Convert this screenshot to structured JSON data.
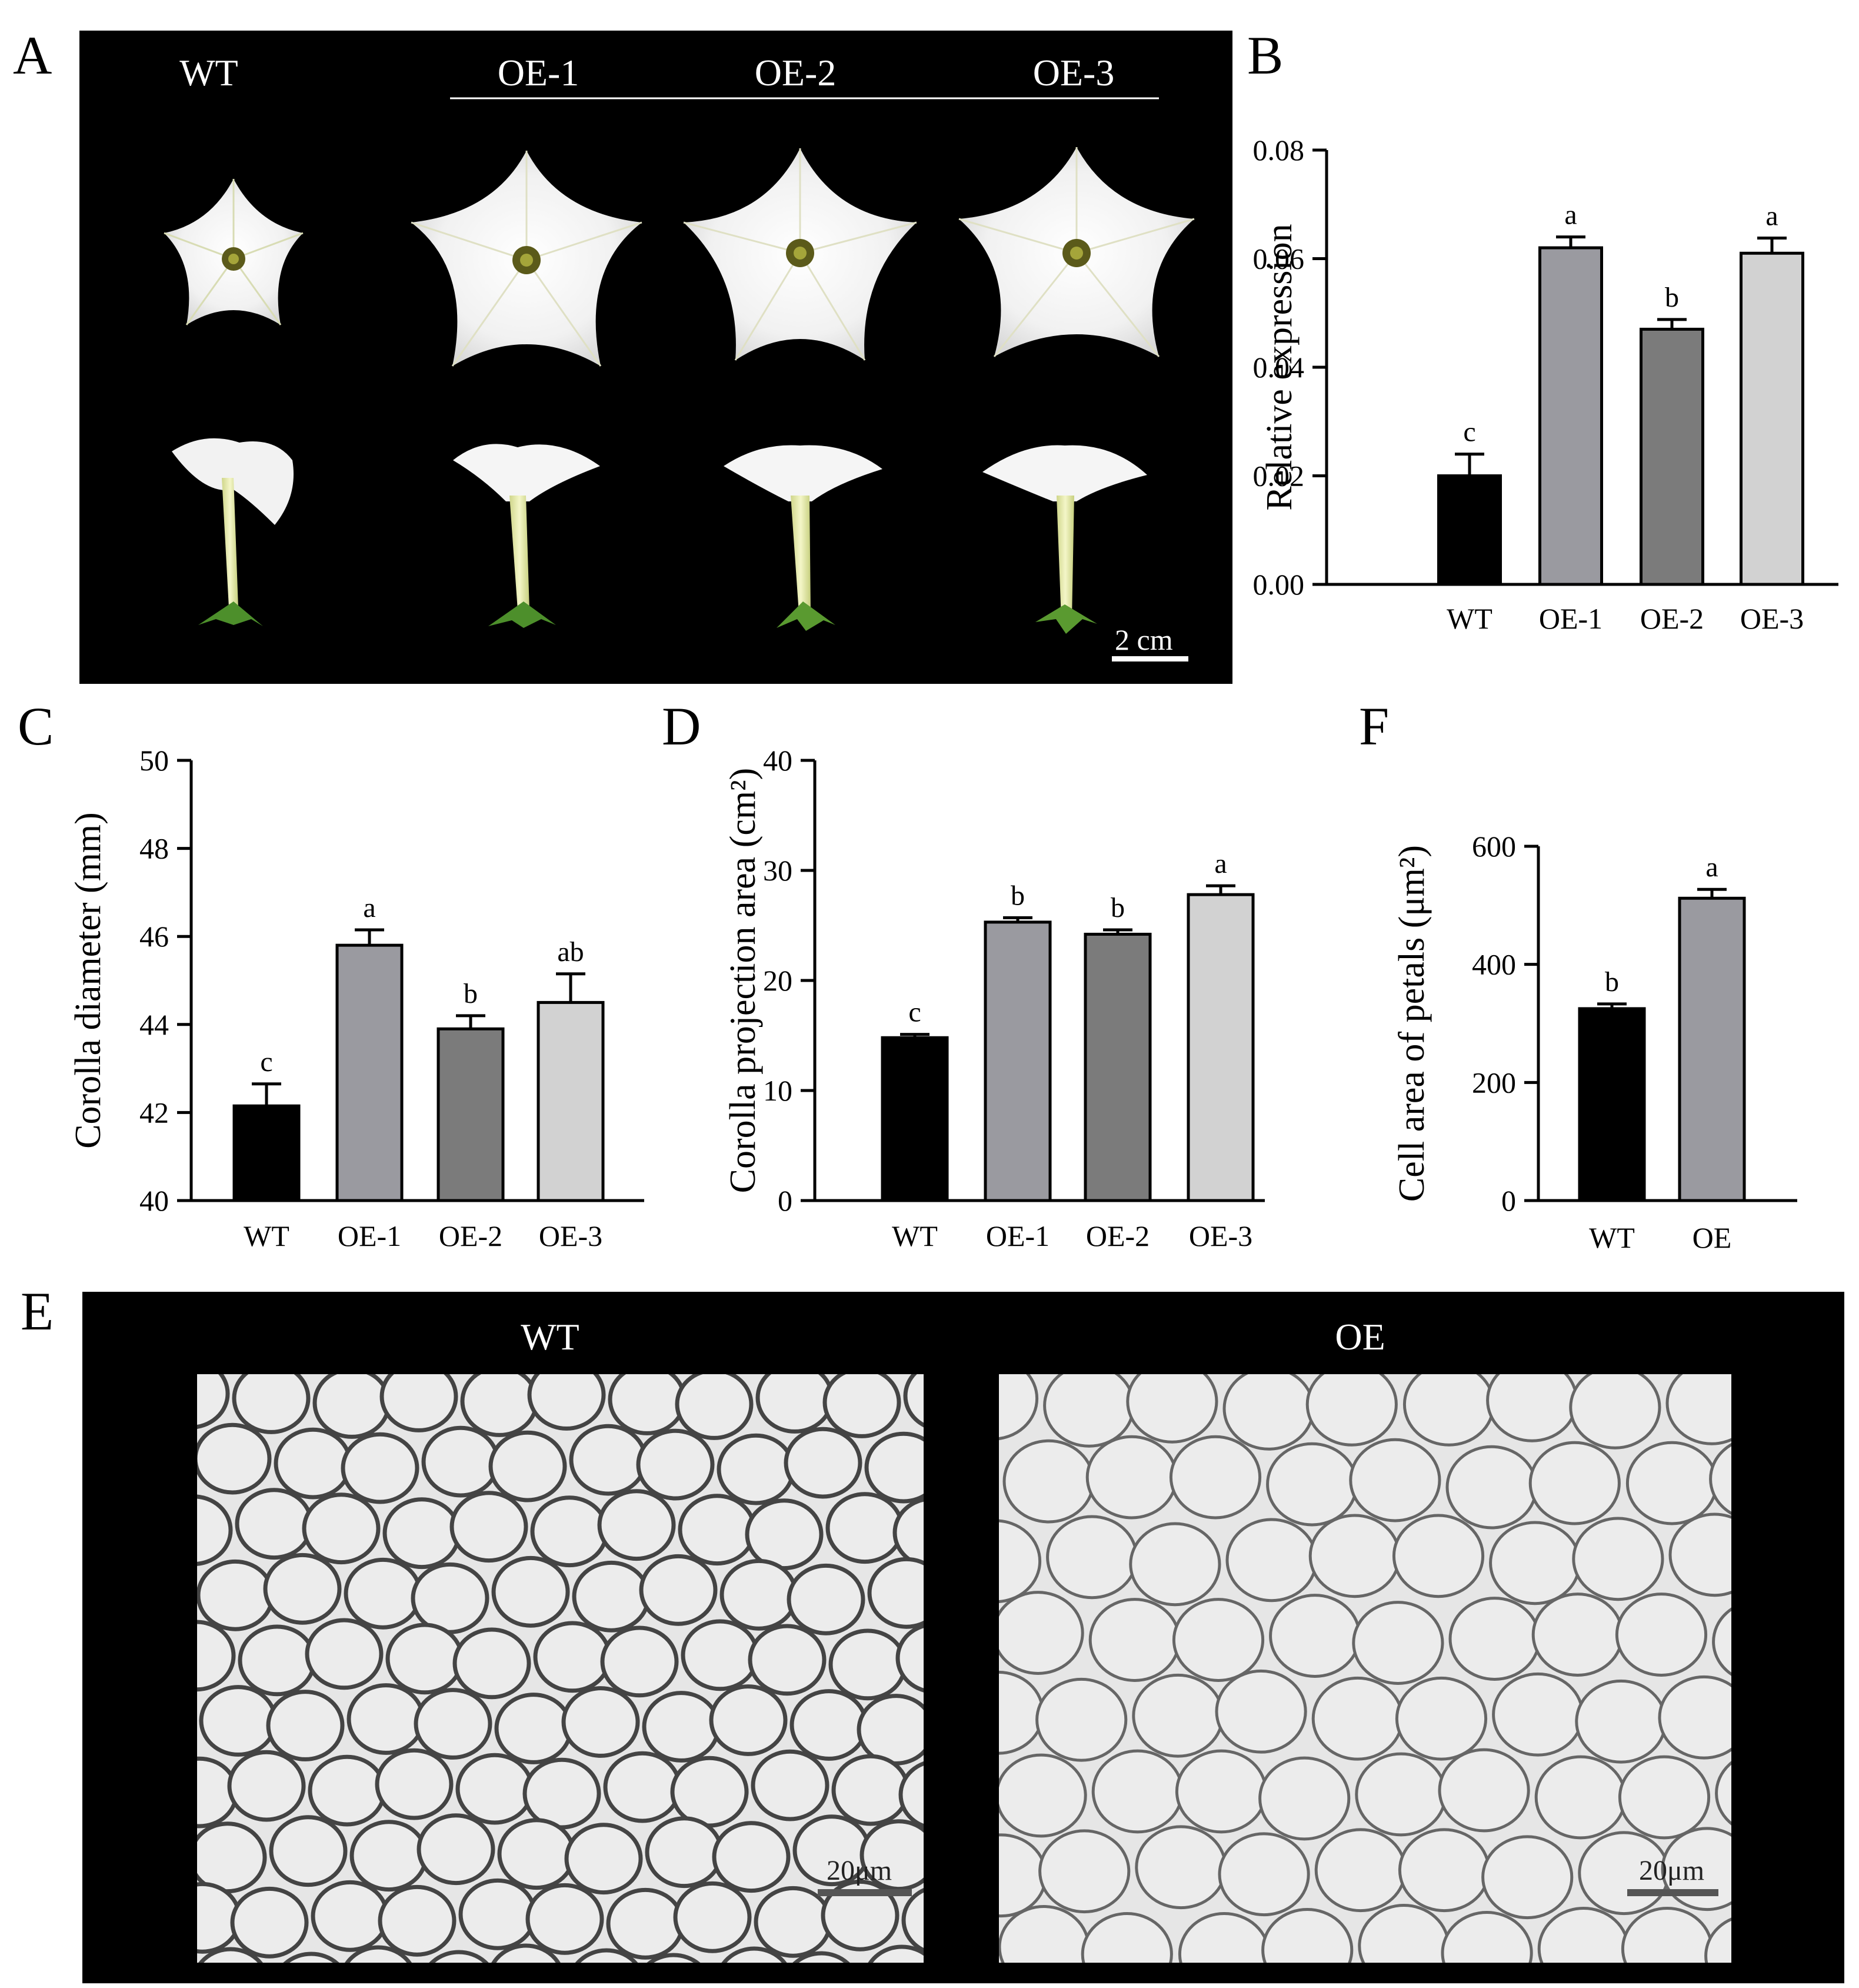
{
  "panel_letters": {
    "a": "A",
    "b": "B",
    "c": "C",
    "d": "D",
    "e": "E",
    "f": "F"
  },
  "panel_a": {
    "labels": {
      "wt": "WT",
      "oe1": "OE-1",
      "oe2": "OE-2",
      "oe3": "OE-3"
    },
    "scale": "2 cm"
  },
  "panel_e": {
    "labels": {
      "wt": "WT",
      "oe": "OE"
    },
    "scale": "20μm"
  },
  "colors": {
    "wt": "#000000",
    "oe1": "#9a9aa0",
    "oe2": "#7b7b7b",
    "oe3": "#d2d2d2",
    "photo_bg": "#000000"
  },
  "chart_data": [
    {
      "panel": "B",
      "type": "bar",
      "categories": [
        "WT",
        "OE-1",
        "OE-2",
        "OE-3"
      ],
      "values": [
        0.02,
        0.062,
        0.047,
        0.061
      ],
      "errors": [
        0.004,
        0.002,
        0.0018,
        0.0028
      ],
      "letters": [
        "c",
        "a",
        "b",
        "a"
      ],
      "ylabel": "Relative expression",
      "ylim": [
        0,
        0.08
      ],
      "yticks": [
        "0.00",
        "0.02",
        "0.04",
        "0.06",
        "0.08"
      ],
      "grid": false
    },
    {
      "panel": "C",
      "type": "bar",
      "categories": [
        "WT",
        "OE-1",
        "OE-2",
        "OE-3"
      ],
      "values": [
        42.15,
        45.8,
        43.9,
        44.5
      ],
      "errors": [
        0.5,
        0.35,
        0.3,
        0.65
      ],
      "letters": [
        "c",
        "a",
        "b",
        "ab"
      ],
      "ylabel": "Corolla diameter (mm)",
      "ylim": [
        40,
        50
      ],
      "yticks": [
        "40",
        "42",
        "44",
        "46",
        "48",
        "50"
      ],
      "grid": false
    },
    {
      "panel": "D",
      "type": "bar",
      "categories": [
        "WT",
        "OE-1",
        "OE-2",
        "OE-3"
      ],
      "values": [
        14.8,
        25.3,
        24.2,
        27.8
      ],
      "errors": [
        0.3,
        0.4,
        0.4,
        0.8
      ],
      "letters": [
        "c",
        "b",
        "b",
        "a"
      ],
      "ylabel": "Corolla projection area (cm²)",
      "ylim": [
        0,
        40
      ],
      "yticks": [
        "0",
        "10",
        "20",
        "30",
        "40"
      ],
      "grid": false
    },
    {
      "panel": "F",
      "type": "bar",
      "categories": [
        "WT",
        "OE"
      ],
      "values": [
        325,
        512
      ],
      "errors": [
        8,
        15
      ],
      "letters": [
        "b",
        "a"
      ],
      "ylabel": "Cell area of petals (μm²)",
      "ylim": [
        0,
        600
      ],
      "yticks": [
        "0",
        "200",
        "400",
        "600"
      ],
      "grid": false
    }
  ]
}
